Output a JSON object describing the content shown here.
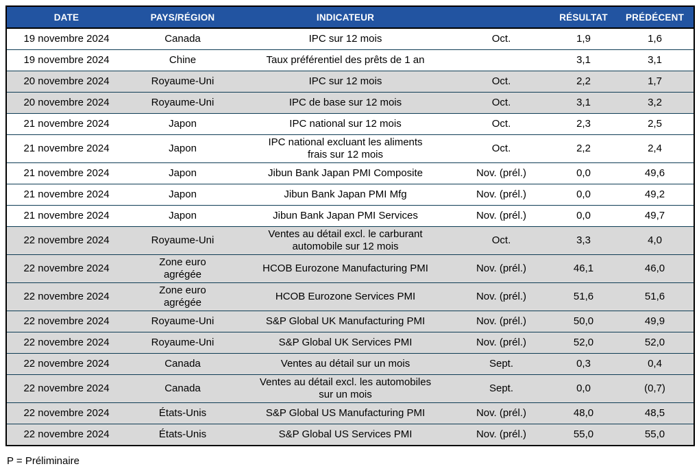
{
  "chart_data": {
    "type": "table",
    "columns": [
      "DATE",
      "PAYS/RÉGION",
      "INDICATEUR",
      "",
      "RÉSULTAT",
      "PRÉDÉCENT"
    ],
    "rows": [
      {
        "date": "19 novembre 2024",
        "region": "Canada",
        "indicator": "IPC sur 12 mois",
        "period": "Oct.",
        "result": "1,9",
        "previous": "1,6",
        "shaded": false
      },
      {
        "date": "19 novembre 2024",
        "region": "Chine",
        "indicator": "Taux préférentiel des prêts de 1 an",
        "period": "",
        "result": "3,1",
        "previous": "3,1",
        "shaded": false
      },
      {
        "date": "20 novembre 2024",
        "region": "Royaume-Uni",
        "indicator": "IPC sur 12 mois",
        "period": "Oct.",
        "result": "2,2",
        "previous": "1,7",
        "shaded": true
      },
      {
        "date": "20 novembre 2024",
        "region": "Royaume-Uni",
        "indicator": "IPC de base sur 12 mois",
        "period": "Oct.",
        "result": "3,1",
        "previous": "3,2",
        "shaded": true
      },
      {
        "date": "21 novembre 2024",
        "region": "Japon",
        "indicator": "IPC national sur 12 mois",
        "period": "Oct.",
        "result": "2,3",
        "previous": "2,5",
        "shaded": false
      },
      {
        "date": "21 novembre 2024",
        "region": "Japon",
        "indicator": "IPC national excluant les aliments\nfrais sur 12 mois",
        "period": "Oct.",
        "result": "2,2",
        "previous": "2,4",
        "shaded": false
      },
      {
        "date": "21 novembre 2024",
        "region": "Japon",
        "indicator": "Jibun Bank Japan PMI Composite",
        "period": "Nov. (prél.)",
        "result": "0,0",
        "previous": "49,6",
        "shaded": false
      },
      {
        "date": "21 novembre 2024",
        "region": "Japon",
        "indicator": "Jibun Bank Japan PMI Mfg",
        "period": "Nov. (prél.)",
        "result": "0,0",
        "previous": "49,2",
        "shaded": false
      },
      {
        "date": "21 novembre 2024",
        "region": "Japon",
        "indicator": "Jibun Bank Japan PMI Services",
        "period": "Nov. (prél.)",
        "result": "0,0",
        "previous": "49,7",
        "shaded": false
      },
      {
        "date": "22 novembre 2024",
        "region": "Royaume-Uni",
        "indicator": "Ventes au détail excl. le carburant\nautomobile sur 12 mois",
        "period": "Oct.",
        "result": "3,3",
        "previous": "4,0",
        "shaded": true
      },
      {
        "date": "22 novembre 2024",
        "region": "Zone euro\nagrégée",
        "indicator": "HCOB Eurozone Manufacturing PMI",
        "period": "Nov. (prél.)",
        "result": "46,1",
        "previous": "46,0",
        "shaded": true
      },
      {
        "date": "22 novembre 2024",
        "region": "Zone euro\nagrégée",
        "indicator": "HCOB Eurozone Services PMI",
        "period": "Nov. (prél.)",
        "result": "51,6",
        "previous": "51,6",
        "shaded": true
      },
      {
        "date": "22 novembre 2024",
        "region": "Royaume-Uni",
        "indicator": "S&P Global UK Manufacturing PMI",
        "period": "Nov. (prél.)",
        "result": "50,0",
        "previous": "49,9",
        "shaded": true
      },
      {
        "date": "22 novembre 2024",
        "region": "Royaume-Uni",
        "indicator": "S&P Global UK Services PMI",
        "period": "Nov. (prél.)",
        "result": "52,0",
        "previous": "52,0",
        "shaded": true
      },
      {
        "date": "22 novembre 2024",
        "region": "Canada",
        "indicator": "Ventes au détail sur un mois",
        "period": "Sept.",
        "result": "0,3",
        "previous": "0,4",
        "shaded": true
      },
      {
        "date": "22 novembre 2024",
        "region": "Canada",
        "indicator": "Ventes au détail excl. les automobiles\nsur un mois",
        "period": "Sept.",
        "result": "0,0",
        "previous": "(0,7)",
        "shaded": true
      },
      {
        "date": "22 novembre 2024",
        "region": "États-Unis",
        "indicator": "S&P Global US Manufacturing PMI",
        "period": "Nov. (prél.)",
        "result": "48,0",
        "previous": "48,5",
        "shaded": true
      },
      {
        "date": "22 novembre 2024",
        "region": "États-Unis",
        "indicator": "S&P Global US Services PMI",
        "period": "Nov. (prél.)",
        "result": "55,0",
        "previous": "55,0",
        "shaded": true
      }
    ]
  },
  "footnote": "P = Préliminaire",
  "colors": {
    "header_bg": "#2254A1",
    "header_text": "#FFFFFF",
    "row_shaded_bg": "#D9D9D9",
    "row_white_bg": "#FFFFFF",
    "separator": "#0D3B54",
    "outer_border": "#000000",
    "body_text": "#000000"
  }
}
